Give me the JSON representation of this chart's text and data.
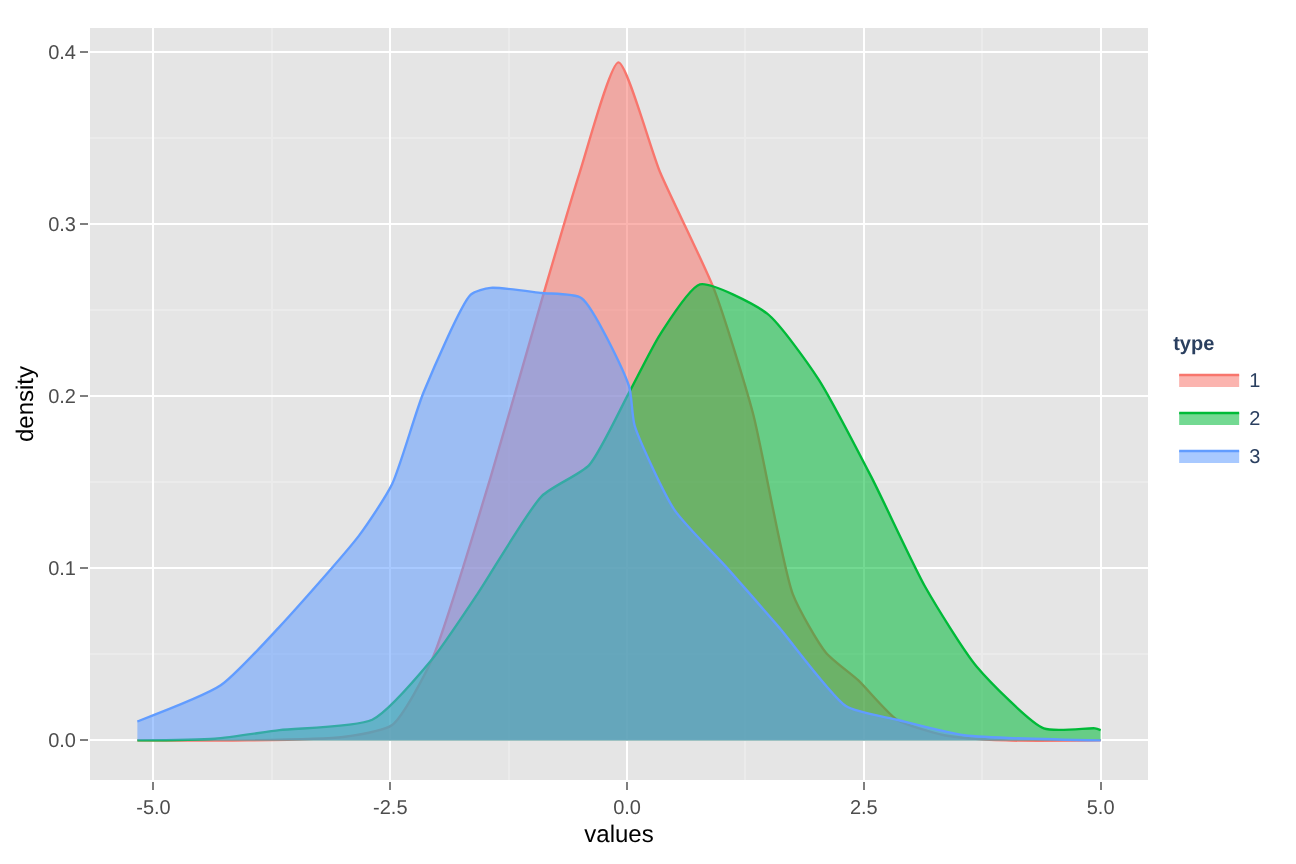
{
  "chart_data": {
    "type": "area",
    "xlabel": "values",
    "ylabel": "density",
    "legend_title": "type",
    "legend": "right",
    "grid": true,
    "xlim": [
      -5.67,
      5.5
    ],
    "ylim": [
      -0.023,
      0.414
    ],
    "xticks": [
      {
        "value": -5,
        "label": "-5.0"
      },
      {
        "value": -2.5,
        "label": "-2.5"
      },
      {
        "value": 0,
        "label": "0.0"
      },
      {
        "value": 2.5,
        "label": "2.5"
      },
      {
        "value": 5,
        "label": "5.0"
      }
    ],
    "yticks": [
      {
        "value": 0,
        "label": "0.0"
      },
      0.1,
      0.2,
      0.3,
      0.4
    ],
    "series": [
      {
        "name": "1",
        "color": "#f8766d",
        "x": [
          -5.17,
          -4,
          -3,
          -2.48,
          -2.06,
          -1.44,
          -0.9,
          -0.5,
          -0.09,
          0.35,
          0.92,
          1.33,
          1.75,
          2.1,
          2.44,
          2.85,
          3.35,
          4,
          5.0
        ],
        "values": [
          0,
          0,
          0.002,
          0.009,
          0.047,
          0.153,
          0.256,
          0.33,
          0.394,
          0.33,
          0.262,
          0.19,
          0.085,
          0.051,
          0.035,
          0.012,
          0.003,
          0,
          0
        ]
      },
      {
        "name": "2",
        "color": "#00ba38",
        "x": [
          -5.17,
          -4.35,
          -3.67,
          -2.69,
          -2.06,
          -1.58,
          -0.9,
          -0.4,
          0.02,
          0.35,
          0.77,
          1.48,
          2.02,
          2.58,
          3.15,
          3.69,
          4.4,
          4.94,
          5.0
        ],
        "values": [
          0,
          0.001,
          0.006,
          0.012,
          0.047,
          0.085,
          0.142,
          0.16,
          0.202,
          0.236,
          0.265,
          0.248,
          0.21,
          0.153,
          0.089,
          0.043,
          0.007,
          0.007,
          0.006
        ]
      },
      {
        "name": "3",
        "color": "#619cff",
        "x": [
          -5.17,
          -4.29,
          -3.67,
          -2.83,
          -2.48,
          -2.15,
          -1.65,
          -1.44,
          -0.9,
          -0.48,
          0.02,
          0.08,
          0.5,
          1.06,
          1.6,
          2.31,
          2.85,
          3.56,
          5.0
        ],
        "values": [
          0.011,
          0.032,
          0.066,
          0.119,
          0.149,
          0.202,
          0.259,
          0.263,
          0.26,
          0.257,
          0.206,
          0.183,
          0.134,
          0.1,
          0.066,
          0.02,
          0.012,
          0.003,
          0
        ]
      }
    ]
  }
}
